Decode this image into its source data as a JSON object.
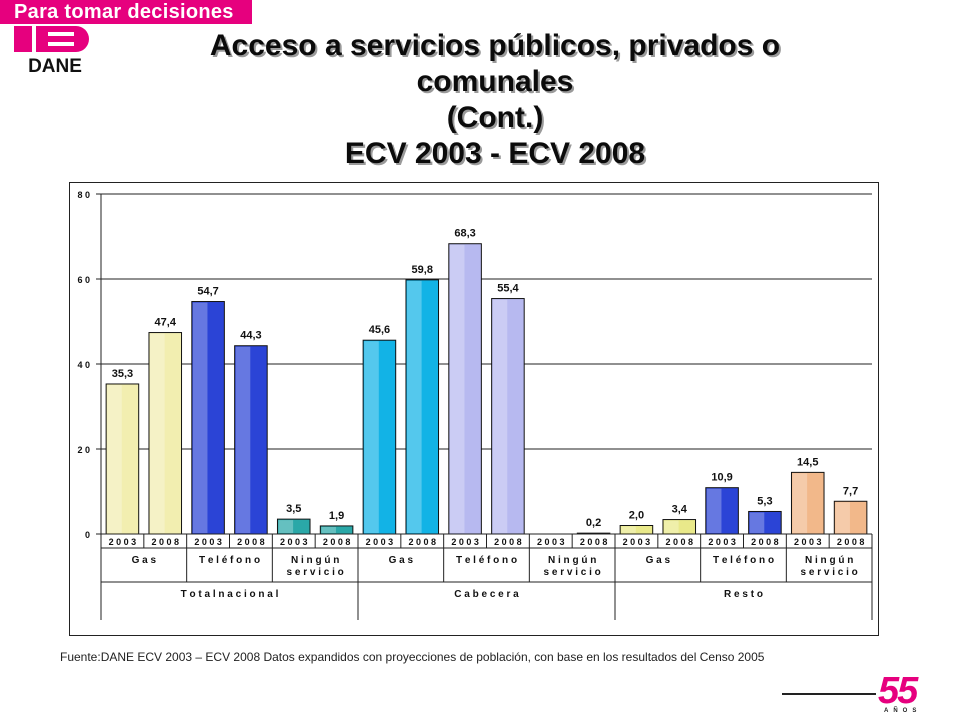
{
  "header": {
    "tagline": "Para tomar decisiones",
    "logo_text": "DANE",
    "title_lines": [
      "Acceso a servicios públicos, privados o",
      "comunales",
      "(Cont.)",
      "ECV 2003 - ECV 2008"
    ]
  },
  "colors": {
    "brand_magenta": "#e6007e",
    "gas": "#f2eeb0",
    "telefono": "#2b44d6",
    "ningun_servicio_total": "#2aa8a8",
    "cabecera_gas": "#12b3e6",
    "cabecera_telefono": "#b7b9f0",
    "resto_gas": "#e9e98a",
    "resto_ningun": "#f2b88a"
  },
  "chart_data": {
    "type": "bar",
    "ylim": [
      0,
      80
    ],
    "yticks": [
      "0",
      "20",
      "40",
      "60",
      "80"
    ],
    "grid": true,
    "bars": [
      {
        "year": "2003",
        "value": 35.3,
        "label": "35,3",
        "service": "Gas",
        "area": "Total nacional"
      },
      {
        "year": "2008",
        "value": 47.4,
        "label": "47,4",
        "service": "Gas",
        "area": "Total nacional"
      },
      {
        "year": "2003",
        "value": 54.7,
        "label": "54,7",
        "service": "Teléfono",
        "area": "Total nacional"
      },
      {
        "year": "2008",
        "value": 44.3,
        "label": "44,3",
        "service": "Teléfono",
        "area": "Total nacional"
      },
      {
        "year": "2003",
        "value": 3.5,
        "label": "3,5",
        "service": "Ningún servicio",
        "area": "Total nacional"
      },
      {
        "year": "2008",
        "value": 1.9,
        "label": "1,9",
        "service": "Ningún servicio",
        "area": "Total nacional"
      },
      {
        "year": "2003",
        "value": 45.6,
        "label": "45,6",
        "service": "Gas",
        "area": "Cabecera"
      },
      {
        "year": "2008",
        "value": 59.8,
        "label": "59,8",
        "service": "Gas",
        "area": "Cabecera"
      },
      {
        "year": "2003",
        "value": 68.3,
        "label": "68,3",
        "service": "Teléfono",
        "area": "Cabecera"
      },
      {
        "year": "2008",
        "value": 55.4,
        "label": "55,4",
        "service": "Teléfono",
        "area": "Cabecera"
      },
      {
        "year": "2003",
        "value": 0,
        "label": "",
        "service": "Ningún servicio",
        "area": "Cabecera"
      },
      {
        "year": "2008",
        "value": 0.2,
        "label": "0,2",
        "service": "Ningún servicio",
        "area": "Cabecera"
      },
      {
        "year": "2003",
        "value": 2.0,
        "label": "2,0",
        "service": "Gas",
        "area": "Resto"
      },
      {
        "year": "2008",
        "value": 3.4,
        "label": "3,4",
        "service": "Gas",
        "area": "Resto"
      },
      {
        "year": "2003",
        "value": 10.9,
        "label": "10,9",
        "service": "Teléfono",
        "area": "Resto"
      },
      {
        "year": "2008",
        "value": 5.3,
        "label": "5,3",
        "service": "Teléfono",
        "area": "Resto"
      },
      {
        "year": "2003",
        "value": 14.5,
        "label": "14,5",
        "service": "Ningún servicio",
        "area": "Resto"
      },
      {
        "year": "2008",
        "value": 7.7,
        "label": "7,7",
        "service": "Ningún servicio",
        "area": "Resto"
      }
    ],
    "services": [
      {
        "lines": [
          "Gas"
        ]
      },
      {
        "lines": [
          "Teléfono"
        ]
      },
      {
        "lines": [
          "Ningún",
          "servicio"
        ]
      },
      {
        "lines": [
          "Gas"
        ]
      },
      {
        "lines": [
          "Teléfono"
        ]
      },
      {
        "lines": [
          "Ningún",
          "servicio"
        ]
      },
      {
        "lines": [
          "Gas"
        ]
      },
      {
        "lines": [
          "Teléfono"
        ]
      },
      {
        "lines": [
          "Ningún",
          "servicio"
        ]
      }
    ],
    "areas": [
      "Total nacional",
      "Cabecera",
      "Resto"
    ],
    "bar_colors": [
      "gas",
      "gas",
      "telefono",
      "telefono",
      "ningun_servicio_total",
      "ningun_servicio_total",
      "cabecera_gas",
      "cabecera_gas",
      "cabecera_telefono",
      "cabecera_telefono",
      "gas",
      "gas",
      "resto_gas",
      "resto_gas",
      "telefono",
      "telefono",
      "resto_ningun",
      "resto_ningun"
    ]
  },
  "footer": {
    "source": "Fuente:DANE ECV 2003 – ECV 2008 Datos expandidos con proyecciones de población, con base en los resultados del Censo 2005",
    "anniversary_number": "55",
    "anniversary_word": "AÑOS"
  }
}
